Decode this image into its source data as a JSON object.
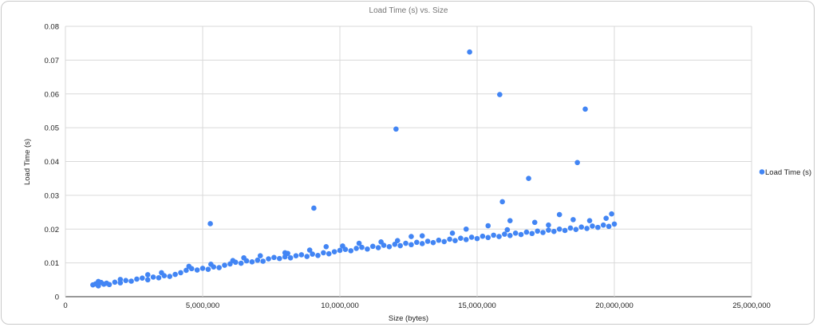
{
  "chart_data": {
    "type": "scatter",
    "title": "Load Time (s) vs. Size",
    "xlabel": "Size (bytes)",
    "ylabel": "Load Time (s)",
    "xlim": [
      0,
      25000000
    ],
    "ylim": [
      0,
      0.08
    ],
    "x_ticks": [
      0,
      5000000,
      10000000,
      15000000,
      20000000,
      25000000
    ],
    "x_tick_labels": [
      "0",
      "5,000,000",
      "10,000,000",
      "15,000,000",
      "20,000,000",
      "25,000,000"
    ],
    "y_ticks": [
      0,
      0.01,
      0.02,
      0.03,
      0.04,
      0.05,
      0.06,
      0.07,
      0.08
    ],
    "y_tick_labels": [
      "0",
      "0.01",
      "0.02",
      "0.03",
      "0.04",
      "0.05",
      "0.06",
      "0.07",
      "0.08"
    ],
    "grid": true,
    "legend_position": "right",
    "series": [
      {
        "name": "Load Time (s)",
        "color": "#4285f4",
        "points": [
          [
            1000000,
            0.0035
          ],
          [
            1100000,
            0.0038
          ],
          [
            1200000,
            0.0032
          ],
          [
            1300000,
            0.0042
          ],
          [
            1400000,
            0.0037
          ],
          [
            1500000,
            0.004
          ],
          [
            1600000,
            0.0036
          ],
          [
            1800000,
            0.0043
          ],
          [
            2000000,
            0.0041
          ],
          [
            2200000,
            0.0048
          ],
          [
            2400000,
            0.0046
          ],
          [
            2600000,
            0.0052
          ],
          [
            2800000,
            0.0055
          ],
          [
            3000000,
            0.005
          ],
          [
            3200000,
            0.0058
          ],
          [
            3400000,
            0.0056
          ],
          [
            3600000,
            0.0062
          ],
          [
            3800000,
            0.006
          ],
          [
            4000000,
            0.0066
          ],
          [
            4200000,
            0.0071
          ],
          [
            4400000,
            0.0078
          ],
          [
            4600000,
            0.0083
          ],
          [
            4800000,
            0.0079
          ],
          [
            5000000,
            0.0084
          ],
          [
            5200000,
            0.0081
          ],
          [
            5400000,
            0.0088
          ],
          [
            5600000,
            0.0086
          ],
          [
            5800000,
            0.0093
          ],
          [
            6000000,
            0.0097
          ],
          [
            6200000,
            0.0102
          ],
          [
            6400000,
            0.0099
          ],
          [
            6600000,
            0.0106
          ],
          [
            6800000,
            0.0103
          ],
          [
            7000000,
            0.0108
          ],
          [
            7200000,
            0.0105
          ],
          [
            7400000,
            0.0112
          ],
          [
            7600000,
            0.0116
          ],
          [
            7800000,
            0.0113
          ],
          [
            8000000,
            0.0118
          ],
          [
            8200000,
            0.0115
          ],
          [
            8400000,
            0.0121
          ],
          [
            8600000,
            0.0124
          ],
          [
            8800000,
            0.0119
          ],
          [
            9000000,
            0.0126
          ],
          [
            9200000,
            0.0122
          ],
          [
            9400000,
            0.013
          ],
          [
            9600000,
            0.0127
          ],
          [
            9800000,
            0.0133
          ],
          [
            10000000,
            0.0137
          ],
          [
            10200000,
            0.014
          ],
          [
            10400000,
            0.0136
          ],
          [
            10600000,
            0.0143
          ],
          [
            10800000,
            0.0146
          ],
          [
            11000000,
            0.0141
          ],
          [
            11200000,
            0.0149
          ],
          [
            11400000,
            0.0145
          ],
          [
            11600000,
            0.0152
          ],
          [
            11800000,
            0.0148
          ],
          [
            12000000,
            0.0155
          ],
          [
            12200000,
            0.0151
          ],
          [
            12400000,
            0.0158
          ],
          [
            12600000,
            0.0154
          ],
          [
            12800000,
            0.0161
          ],
          [
            13000000,
            0.0157
          ],
          [
            13200000,
            0.0164
          ],
          [
            13400000,
            0.016
          ],
          [
            13600000,
            0.0167
          ],
          [
            13800000,
            0.0163
          ],
          [
            14000000,
            0.017
          ],
          [
            14200000,
            0.0166
          ],
          [
            14400000,
            0.0173
          ],
          [
            14600000,
            0.0169
          ],
          [
            14800000,
            0.0176
          ],
          [
            15000000,
            0.0172
          ],
          [
            15200000,
            0.0179
          ],
          [
            15400000,
            0.0175
          ],
          [
            15600000,
            0.0182
          ],
          [
            15800000,
            0.0178
          ],
          [
            16000000,
            0.0185
          ],
          [
            16200000,
            0.0181
          ],
          [
            16400000,
            0.0188
          ],
          [
            16600000,
            0.0184
          ],
          [
            16800000,
            0.0191
          ],
          [
            17000000,
            0.0187
          ],
          [
            17200000,
            0.0194
          ],
          [
            17400000,
            0.019
          ],
          [
            17600000,
            0.0197
          ],
          [
            17800000,
            0.0193
          ],
          [
            18000000,
            0.02
          ],
          [
            18200000,
            0.0196
          ],
          [
            18400000,
            0.0203
          ],
          [
            18600000,
            0.0199
          ],
          [
            18800000,
            0.0206
          ],
          [
            19000000,
            0.0202
          ],
          [
            19200000,
            0.0209
          ],
          [
            19400000,
            0.0205
          ],
          [
            19600000,
            0.0212
          ],
          [
            19800000,
            0.0208
          ],
          [
            20000000,
            0.0215
          ],
          [
            19900000,
            0.0245
          ],
          [
            19700000,
            0.0232
          ],
          [
            18000000,
            0.0243
          ],
          [
            16200000,
            0.0225
          ],
          [
            14600000,
            0.02
          ],
          [
            13000000,
            0.018
          ],
          [
            11500000,
            0.0162
          ],
          [
            9500000,
            0.0148
          ],
          [
            8000000,
            0.013
          ],
          [
            6500000,
            0.0115
          ],
          [
            4500000,
            0.009
          ],
          [
            3000000,
            0.0065
          ],
          [
            17100000,
            0.022
          ],
          [
            18500000,
            0.0228
          ],
          [
            15400000,
            0.021
          ],
          [
            12600000,
            0.0178
          ],
          [
            10700000,
            0.0158
          ],
          [
            8900000,
            0.0138
          ],
          [
            7100000,
            0.0121
          ],
          [
            5300000,
            0.0096
          ],
          [
            3500000,
            0.0071
          ],
          [
            2000000,
            0.0051
          ],
          [
            1200000,
            0.0045
          ],
          [
            19100000,
            0.0225
          ],
          [
            17600000,
            0.0212
          ],
          [
            16100000,
            0.0198
          ],
          [
            14100000,
            0.0188
          ],
          [
            12100000,
            0.0166
          ],
          [
            10100000,
            0.015
          ],
          [
            8100000,
            0.0128
          ],
          [
            6100000,
            0.0107
          ],
          [
            5279000,
            0.0216
          ],
          [
            9052000,
            0.0262
          ],
          [
            12045000,
            0.0496
          ],
          [
            14727000,
            0.0724
          ],
          [
            15824000,
            0.0598
          ],
          [
            15920000,
            0.0281
          ],
          [
            16877000,
            0.035
          ],
          [
            18653000,
            0.0397
          ],
          [
            18940000,
            0.0555
          ]
        ]
      }
    ]
  }
}
